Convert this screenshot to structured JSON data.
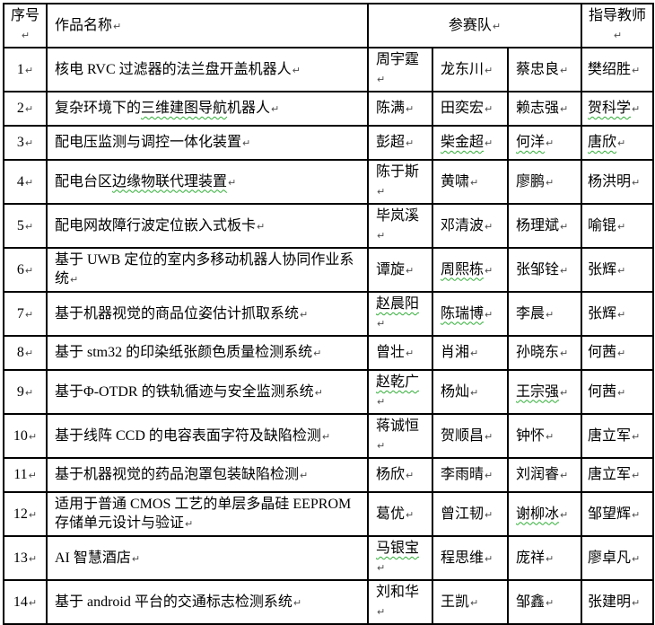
{
  "pilcrow": "↵",
  "colors": {
    "border": "#000000",
    "spellcheck_underline": "#2fae35",
    "paragraph_mark": "#4d4d4d",
    "background": "#ffffff"
  },
  "header": {
    "no": "序号",
    "title": "作品名称",
    "team": "参赛队",
    "advisor": "指导教师"
  },
  "rows": [
    {
      "no": "1",
      "title": [
        {
          "t": "核电 RVC 过滤器的法兰盘开盖机器人",
          "u": false
        }
      ],
      "members": [
        {
          "t": "周宇霆",
          "u": false
        },
        {
          "t": "龙东川",
          "u": false
        },
        {
          "t": "蔡忠良",
          "u": false
        }
      ],
      "advisor": {
        "t": "樊绍胜",
        "u": false
      }
    },
    {
      "no": "2",
      "title": [
        {
          "t": "复杂环境下的",
          "u": false
        },
        {
          "t": "三维建图导航",
          "u": true
        },
        {
          "t": "机器人",
          "u": false
        }
      ],
      "members": [
        {
          "t": "陈满",
          "u": false
        },
        {
          "t": "田奕宏",
          "u": false
        },
        {
          "t": "赖志强",
          "u": false
        }
      ],
      "advisor": {
        "t": "贺科学",
        "u": true
      }
    },
    {
      "no": "3",
      "title": [
        {
          "t": "配电压监测与调控一体化装置",
          "u": false
        }
      ],
      "members": [
        {
          "t": "彭超",
          "u": false
        },
        {
          "t": "柴金超",
          "u": true
        },
        {
          "t": "何洋",
          "u": true
        }
      ],
      "advisor": {
        "t": "唐欣",
        "u": true
      }
    },
    {
      "no": "4",
      "title": [
        {
          "t": "配电台区",
          "u": false
        },
        {
          "t": "边缘物联代理装置",
          "u": true
        }
      ],
      "members": [
        {
          "t": "陈于斯",
          "u": false
        },
        {
          "t": "黄啸",
          "u": false
        },
        {
          "t": "廖鹏",
          "u": false
        }
      ],
      "advisor": {
        "t": "杨洪明",
        "u": false
      }
    },
    {
      "no": "5",
      "title": [
        {
          "t": "配电网故障行波定位嵌入式板卡",
          "u": false
        }
      ],
      "members": [
        {
          "t": "毕岚溪",
          "u": false
        },
        {
          "t": "邓清波",
          "u": false
        },
        {
          "t": "杨理斌",
          "u": false
        }
      ],
      "advisor": {
        "t": "喻锟",
        "u": false
      }
    },
    {
      "no": "6",
      "title": [
        {
          "t": "基于 UWB 定位的室内多移动机器人协同作业系统",
          "u": false
        }
      ],
      "members": [
        {
          "t": "谭旋",
          "u": false
        },
        {
          "t": "周熙栋",
          "u": true
        },
        {
          "t": "张邹铨",
          "u": false
        }
      ],
      "advisor": {
        "t": "张辉",
        "u": false
      }
    },
    {
      "no": "7",
      "title": [
        {
          "t": "基于机器视觉的商品位姿估计抓取系统",
          "u": false
        }
      ],
      "members": [
        {
          "t": "赵晨阳",
          "u": true
        },
        {
          "t": "陈瑞博",
          "u": true
        },
        {
          "t": "李晨",
          "u": false
        }
      ],
      "advisor": {
        "t": "张辉",
        "u": false
      }
    },
    {
      "no": "8",
      "title": [
        {
          "t": "基于 stm32 的印染纸张颜色质量检测系统",
          "u": false
        }
      ],
      "members": [
        {
          "t": "曾壮",
          "u": false
        },
        {
          "t": "肖湘",
          "u": false
        },
        {
          "t": "孙晓东",
          "u": false
        }
      ],
      "advisor": {
        "t": "何茜",
        "u": false
      }
    },
    {
      "no": "9",
      "title": [
        {
          "t": "基于Φ-OTDR 的铁轨循迹与安全监测系统",
          "u": false
        }
      ],
      "members": [
        {
          "t": "赵乾广",
          "u": true
        },
        {
          "t": "杨灿",
          "u": false
        },
        {
          "t": "王宗强",
          "u": true
        }
      ],
      "advisor": {
        "t": "何茜",
        "u": false
      }
    },
    {
      "no": "10",
      "title": [
        {
          "t": "基于线阵 CCD 的电容表面字符及缺陷检测",
          "u": false
        }
      ],
      "members": [
        {
          "t": "蒋诚恒",
          "u": false
        },
        {
          "t": "贺顺昌",
          "u": false
        },
        {
          "t": "钟怀",
          "u": false
        }
      ],
      "advisor": {
        "t": "唐立军",
        "u": false
      }
    },
    {
      "no": "11",
      "title": [
        {
          "t": "基于机器视觉的药品泡罩包装缺陷检测",
          "u": false
        }
      ],
      "members": [
        {
          "t": "杨欣",
          "u": false
        },
        {
          "t": "李雨晴",
          "u": false
        },
        {
          "t": "刘润睿",
          "u": false
        }
      ],
      "advisor": {
        "t": "唐立军",
        "u": false
      }
    },
    {
      "no": "12",
      "title": [
        {
          "t": "适用于普通 CMOS 工艺的单层多晶硅 EEPROM 存储单元设计与验证",
          "u": false
        }
      ],
      "members": [
        {
          "t": "葛优",
          "u": false
        },
        {
          "t": "曾江韧",
          "u": false
        },
        {
          "t": "谢柳冰",
          "u": true
        }
      ],
      "advisor": {
        "t": "邹望辉",
        "u": false
      }
    },
    {
      "no": "13",
      "title": [
        {
          "t": "AI 智慧酒店",
          "u": false
        }
      ],
      "members": [
        {
          "t": "马银宝",
          "u": true
        },
        {
          "t": "程思维",
          "u": false
        },
        {
          "t": "庞祥",
          "u": false
        }
      ],
      "advisor": {
        "t": "廖卓凡",
        "u": false
      }
    },
    {
      "no": "14",
      "title": [
        {
          "t": "基于 android 平台的交通标志检测系统",
          "u": false
        }
      ],
      "members": [
        {
          "t": "刘和华",
          "u": false
        },
        {
          "t": "王凯",
          "u": false
        },
        {
          "t": "邹鑫",
          "u": false
        }
      ],
      "advisor": {
        "t": "张建明",
        "u": false
      }
    }
  ]
}
